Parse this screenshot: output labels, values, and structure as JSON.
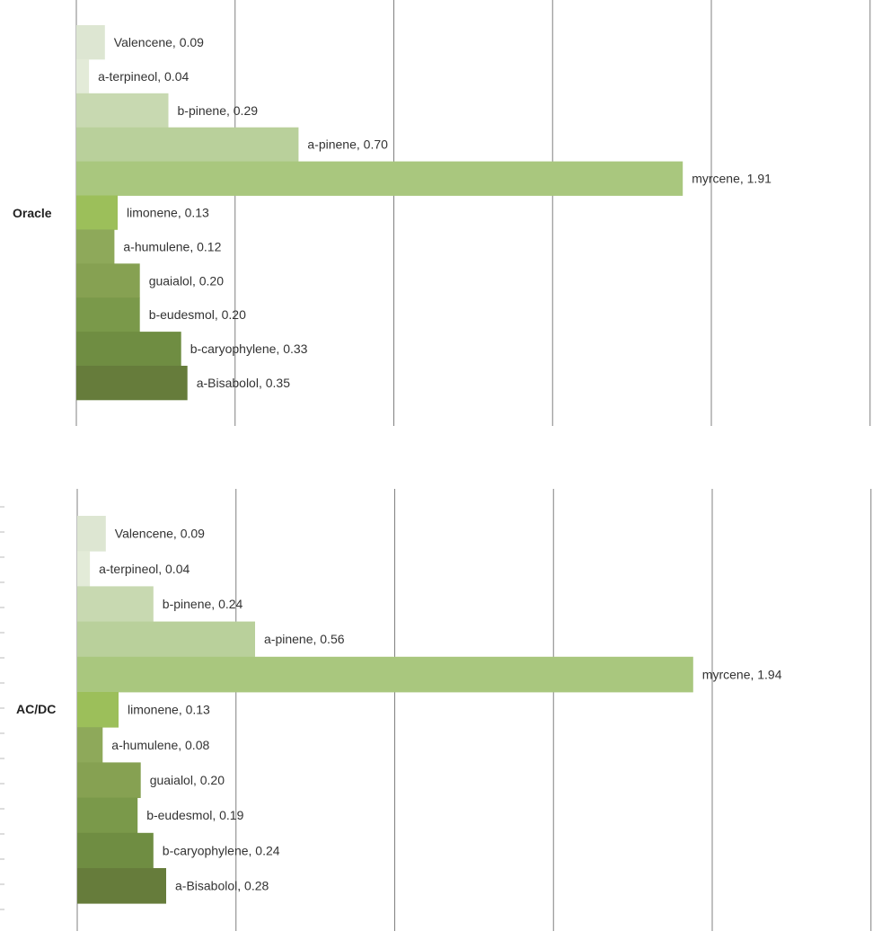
{
  "chart_data": [
    {
      "type": "bar",
      "orientation": "horizontal",
      "group_label": "Oracle",
      "categories": [
        "Valencene",
        "a-terpineol",
        "b-pinene",
        "a-pinene",
        "myrcene",
        "limonene",
        "a-humulene",
        "guaialol",
        "b-eudesmol",
        "b-caryophylene",
        "a-Bisabolol"
      ],
      "values": [
        0.09,
        0.04,
        0.29,
        0.7,
        1.91,
        0.13,
        0.12,
        0.2,
        0.2,
        0.33,
        0.35
      ],
      "data_labels": [
        "Valencene, 0.09",
        "a-terpineol, 0.04",
        "b-pinene, 0.29",
        "a-pinene, 0.70",
        "myrcene, 1.91",
        "limonene, 0.13",
        "a-humulene, 0.12",
        "guaialol, 0.20",
        "b-eudesmol, 0.20",
        "b-caryophylene, 0.33",
        "a-Bisabolol, 0.35"
      ],
      "xlim": [
        0,
        2.5
      ],
      "gridlines": [
        0,
        0.5,
        1.0,
        1.5,
        2.0,
        2.5
      ],
      "grid": true,
      "colors": [
        "#dde6d2",
        "#e3ebd8",
        "#c8d9b1",
        "#b9d09b",
        "#a9c77e",
        "#9cbf5a",
        "#8ea95a",
        "#86a152",
        "#7a994a",
        "#6f8d42",
        "#667c3b"
      ]
    },
    {
      "type": "bar",
      "orientation": "horizontal",
      "group_label": "AC/DC",
      "categories": [
        "Valencene",
        "a-terpineol",
        "b-pinene",
        "a-pinene",
        "myrcene",
        "limonene",
        "a-humulene",
        "guaialol",
        "b-eudesmol",
        "b-caryophylene",
        "a-Bisabolol"
      ],
      "values": [
        0.09,
        0.04,
        0.24,
        0.56,
        1.94,
        0.13,
        0.08,
        0.2,
        0.19,
        0.24,
        0.28
      ],
      "data_labels": [
        "Valencene, 0.09",
        "a-terpineol, 0.04",
        "b-pinene, 0.24",
        "a-pinene, 0.56",
        "myrcene, 1.94",
        "limonene, 0.13",
        "a-humulene, 0.08",
        "guaialol, 0.20",
        "b-eudesmol, 0.19",
        "b-caryophylene, 0.24",
        "a-Bisabolol, 0.28"
      ],
      "xlim": [
        0,
        2.5
      ],
      "gridlines": [
        0,
        0.5,
        1.0,
        1.5,
        2.0,
        2.5
      ],
      "grid": true,
      "colors": [
        "#dde6d2",
        "#e3ebd8",
        "#c8d9b1",
        "#b9d09b",
        "#a9c77e",
        "#9cbf5a",
        "#8ea95a",
        "#86a152",
        "#7a994a",
        "#6f8d42",
        "#667c3b"
      ]
    }
  ]
}
